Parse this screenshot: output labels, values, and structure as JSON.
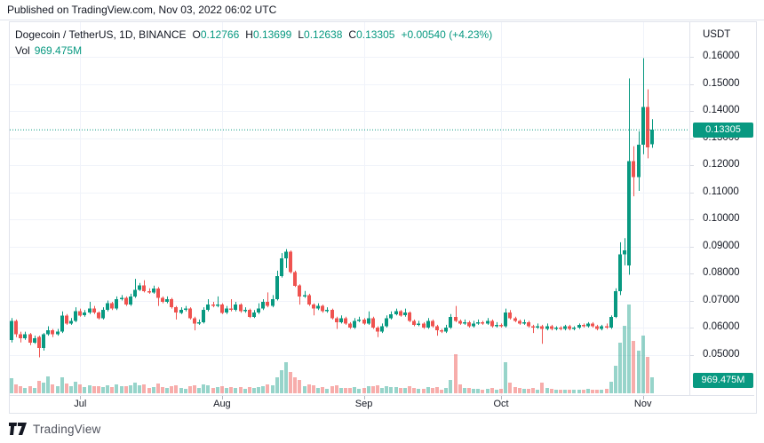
{
  "published_bar": {
    "text": "Published on TradingView.com, Nov 03, 2022 06:02 UTC"
  },
  "legend": {
    "symbol": "Dogecoin / TetherUS, 1D, BINANCE",
    "ohlc": [
      {
        "label": "O",
        "value": "0.12766"
      },
      {
        "label": "H",
        "value": "0.13699"
      },
      {
        "label": "L",
        "value": "0.12638"
      },
      {
        "label": "C",
        "value": "0.13305"
      }
    ],
    "change": "+0.00540 (+4.23%)",
    "vol_label": "Vol",
    "vol_value": "969.475M"
  },
  "price_axis": {
    "currency": "USDT",
    "labels": [
      "0.16000",
      "0.15000",
      "0.14000",
      "0.13000",
      "0.12000",
      "0.11000",
      "0.10000",
      "0.09000",
      "0.08000",
      "0.07000",
      "0.06000",
      "0.05000"
    ],
    "last_price_badge": "0.13305",
    "volume_badge": "969.475M"
  },
  "time_axis": {
    "labels": [
      {
        "text": "Jul",
        "index": 15
      },
      {
        "text": "Aug",
        "index": 46
      },
      {
        "text": "Sep",
        "index": 77
      },
      {
        "text": "Oct",
        "index": 107
      },
      {
        "text": "Nov",
        "index": 138
      }
    ]
  },
  "footer": {
    "brand": "TradingView"
  },
  "colors": {
    "up": "#089981",
    "down": "#ef5350",
    "vol_up": "rgba(8,153,129,0.42)",
    "vol_down": "rgba(239,83,80,0.48)",
    "grid": "#f0f3fa",
    "border": "#e0e3eb",
    "text": "#131722",
    "accent": "#089981",
    "badge_bg": "#089981"
  },
  "chart_data": {
    "type": "candlestick+volume",
    "title": "Dogecoin / TetherUS, 1D, BINANCE",
    "symbol": "DOGE/USDT",
    "exchange": "BINANCE",
    "interval": "1D",
    "quote_currency": "USDT",
    "current_candle": {
      "open": 0.12766,
      "high": 0.13699,
      "low": 0.12638,
      "close": 0.13305,
      "change": 0.0054,
      "change_pct": 4.23
    },
    "current_volume": "969.475M",
    "date_range": "mid-June 2022 to Nov 03 2022, daily candles",
    "ylim": [
      0.05,
      0.16
    ],
    "grid": true,
    "last_price_line": 0.13305,
    "candles": [
      [
        0.0555,
        0.0635,
        0.0545,
        0.0625
      ],
      [
        0.0625,
        0.063,
        0.0565,
        0.0575
      ],
      [
        0.0575,
        0.0585,
        0.0545,
        0.056
      ],
      [
        0.056,
        0.0585,
        0.0555,
        0.0575
      ],
      [
        0.0575,
        0.058,
        0.0535,
        0.0545
      ],
      [
        0.0545,
        0.057,
        0.054,
        0.056
      ],
      [
        0.0565,
        0.057,
        0.049,
        0.0525
      ],
      [
        0.0525,
        0.058,
        0.0515,
        0.0575
      ],
      [
        0.0575,
        0.0605,
        0.057,
        0.059
      ],
      [
        0.059,
        0.0595,
        0.0565,
        0.0575
      ],
      [
        0.0575,
        0.0595,
        0.057,
        0.0585
      ],
      [
        0.0585,
        0.066,
        0.058,
        0.0645
      ],
      [
        0.0645,
        0.065,
        0.061,
        0.0615
      ],
      [
        0.0615,
        0.0635,
        0.061,
        0.0625
      ],
      [
        0.0625,
        0.0675,
        0.062,
        0.066
      ],
      [
        0.066,
        0.067,
        0.064,
        0.0645
      ],
      [
        0.0645,
        0.0665,
        0.064,
        0.0655
      ],
      [
        0.0655,
        0.0695,
        0.065,
        0.067
      ],
      [
        0.067,
        0.068,
        0.065,
        0.0655
      ],
      [
        0.0655,
        0.066,
        0.063,
        0.0635
      ],
      [
        0.0635,
        0.0675,
        0.063,
        0.0665
      ],
      [
        0.0665,
        0.07,
        0.066,
        0.069
      ],
      [
        0.069,
        0.0695,
        0.0665,
        0.067
      ],
      [
        0.067,
        0.0715,
        0.0665,
        0.0705
      ],
      [
        0.0705,
        0.072,
        0.07,
        0.071
      ],
      [
        0.071,
        0.0715,
        0.068,
        0.0685
      ],
      [
        0.0685,
        0.0725,
        0.068,
        0.0715
      ],
      [
        0.0715,
        0.078,
        0.071,
        0.074
      ],
      [
        0.074,
        0.0765,
        0.0735,
        0.0755
      ],
      [
        0.0755,
        0.0775,
        0.073,
        0.0735
      ],
      [
        0.0735,
        0.0745,
        0.0725,
        0.073
      ],
      [
        0.073,
        0.0755,
        0.0725,
        0.0745
      ],
      [
        0.0745,
        0.075,
        0.068,
        0.071
      ],
      [
        0.071,
        0.0715,
        0.069,
        0.0695
      ],
      [
        0.0695,
        0.0715,
        0.069,
        0.0705
      ],
      [
        0.0705,
        0.071,
        0.067,
        0.0675
      ],
      [
        0.0675,
        0.068,
        0.063,
        0.0655
      ],
      [
        0.0655,
        0.0675,
        0.065,
        0.0665
      ],
      [
        0.0665,
        0.068,
        0.066,
        0.067
      ],
      [
        0.067,
        0.0675,
        0.063,
        0.0635
      ],
      [
        0.0635,
        0.064,
        0.059,
        0.0615
      ],
      [
        0.0615,
        0.063,
        0.061,
        0.062
      ],
      [
        0.062,
        0.0675,
        0.0615,
        0.0665
      ],
      [
        0.0665,
        0.0705,
        0.066,
        0.0685
      ],
      [
        0.0685,
        0.0695,
        0.0675,
        0.068
      ],
      [
        0.068,
        0.0715,
        0.0675,
        0.0685
      ],
      [
        0.0685,
        0.069,
        0.065,
        0.0655
      ],
      [
        0.0655,
        0.068,
        0.065,
        0.067
      ],
      [
        0.067,
        0.0705,
        0.066,
        0.0665
      ],
      [
        0.0665,
        0.0695,
        0.066,
        0.0685
      ],
      [
        0.0685,
        0.069,
        0.0655,
        0.066
      ],
      [
        0.066,
        0.0675,
        0.0655,
        0.0665
      ],
      [
        0.0665,
        0.067,
        0.0635,
        0.064
      ],
      [
        0.064,
        0.0665,
        0.0635,
        0.0655
      ],
      [
        0.0655,
        0.069,
        0.065,
        0.067
      ],
      [
        0.067,
        0.0705,
        0.0665,
        0.0695
      ],
      [
        0.0695,
        0.073,
        0.0675,
        0.068
      ],
      [
        0.068,
        0.072,
        0.0675,
        0.0705
      ],
      [
        0.0705,
        0.081,
        0.07,
        0.079
      ],
      [
        0.079,
        0.0875,
        0.0785,
        0.0855
      ],
      [
        0.0855,
        0.089,
        0.082,
        0.088
      ],
      [
        0.088,
        0.0885,
        0.08,
        0.0805
      ],
      [
        0.0805,
        0.081,
        0.075,
        0.0755
      ],
      [
        0.0755,
        0.076,
        0.0685,
        0.0715
      ],
      [
        0.0715,
        0.0735,
        0.071,
        0.072
      ],
      [
        0.072,
        0.0725,
        0.068,
        0.0685
      ],
      [
        0.0685,
        0.069,
        0.0645,
        0.067
      ],
      [
        0.067,
        0.069,
        0.0665,
        0.068
      ],
      [
        0.068,
        0.0685,
        0.0655,
        0.066
      ],
      [
        0.066,
        0.0675,
        0.0655,
        0.0665
      ],
      [
        0.0665,
        0.067,
        0.063,
        0.0635
      ],
      [
        0.0635,
        0.064,
        0.0595,
        0.062
      ],
      [
        0.062,
        0.0645,
        0.0615,
        0.0635
      ],
      [
        0.0635,
        0.064,
        0.061,
        0.0615
      ],
      [
        0.0615,
        0.062,
        0.0595,
        0.06
      ],
      [
        0.06,
        0.0635,
        0.0595,
        0.0625
      ],
      [
        0.0625,
        0.064,
        0.062,
        0.063
      ],
      [
        0.063,
        0.0635,
        0.061,
        0.0615
      ],
      [
        0.0615,
        0.066,
        0.061,
        0.0635
      ],
      [
        0.0635,
        0.064,
        0.0595,
        0.06
      ],
      [
        0.06,
        0.0605,
        0.0565,
        0.0585
      ],
      [
        0.0585,
        0.0615,
        0.058,
        0.0605
      ],
      [
        0.0605,
        0.0645,
        0.06,
        0.0635
      ],
      [
        0.0635,
        0.066,
        0.063,
        0.065
      ],
      [
        0.065,
        0.067,
        0.0645,
        0.066
      ],
      [
        0.066,
        0.0665,
        0.064,
        0.0645
      ],
      [
        0.0645,
        0.067,
        0.064,
        0.0655
      ],
      [
        0.0655,
        0.066,
        0.062,
        0.0625
      ],
      [
        0.0625,
        0.063,
        0.0605,
        0.061
      ],
      [
        0.061,
        0.0625,
        0.0605,
        0.0615
      ],
      [
        0.0615,
        0.062,
        0.0595,
        0.06
      ],
      [
        0.06,
        0.0635,
        0.0595,
        0.0625
      ],
      [
        0.0625,
        0.063,
        0.06,
        0.0605
      ],
      [
        0.0605,
        0.061,
        0.057,
        0.059
      ],
      [
        0.059,
        0.0595,
        0.058,
        0.0585
      ],
      [
        0.0585,
        0.061,
        0.058,
        0.06
      ],
      [
        0.06,
        0.065,
        0.0595,
        0.064
      ],
      [
        0.064,
        0.068,
        0.062,
        0.0625
      ],
      [
        0.0625,
        0.063,
        0.061,
        0.0615
      ],
      [
        0.0615,
        0.063,
        0.061,
        0.062
      ],
      [
        0.062,
        0.0625,
        0.06,
        0.0605
      ],
      [
        0.0605,
        0.0625,
        0.06,
        0.0615
      ],
      [
        0.0615,
        0.063,
        0.061,
        0.062
      ],
      [
        0.062,
        0.0625,
        0.061,
        0.0615
      ],
      [
        0.0615,
        0.0635,
        0.061,
        0.0625
      ],
      [
        0.0625,
        0.063,
        0.06,
        0.0605
      ],
      [
        0.0605,
        0.062,
        0.06,
        0.061
      ],
      [
        0.061,
        0.0615,
        0.06,
        0.0605
      ],
      [
        0.0605,
        0.067,
        0.06,
        0.0655
      ],
      [
        0.0655,
        0.0665,
        0.063,
        0.0635
      ],
      [
        0.0635,
        0.064,
        0.062,
        0.0625
      ],
      [
        0.0625,
        0.063,
        0.061,
        0.0615
      ],
      [
        0.0615,
        0.063,
        0.061,
        0.062
      ],
      [
        0.062,
        0.0625,
        0.06,
        0.0605
      ],
      [
        0.0605,
        0.061,
        0.058,
        0.06
      ],
      [
        0.06,
        0.0615,
        0.0595,
        0.0605
      ],
      [
        0.0605,
        0.061,
        0.054,
        0.0595
      ],
      [
        0.0595,
        0.0615,
        0.059,
        0.0605
      ],
      [
        0.0605,
        0.061,
        0.059,
        0.0595
      ],
      [
        0.0595,
        0.0605,
        0.059,
        0.06
      ],
      [
        0.06,
        0.0605,
        0.059,
        0.0595
      ],
      [
        0.0595,
        0.061,
        0.059,
        0.0605
      ],
      [
        0.0605,
        0.061,
        0.059,
        0.0595
      ],
      [
        0.0595,
        0.0605,
        0.059,
        0.06
      ],
      [
        0.06,
        0.0615,
        0.0595,
        0.061
      ],
      [
        0.061,
        0.0615,
        0.06,
        0.0605
      ],
      [
        0.0605,
        0.062,
        0.06,
        0.0615
      ],
      [
        0.0615,
        0.062,
        0.06,
        0.0605
      ],
      [
        0.0605,
        0.061,
        0.059,
        0.0595
      ],
      [
        0.0595,
        0.061,
        0.059,
        0.0605
      ],
      [
        0.0605,
        0.0615,
        0.0595,
        0.06
      ],
      [
        0.06,
        0.0645,
        0.0595,
        0.064
      ],
      [
        0.064,
        0.0745,
        0.0635,
        0.0735
      ],
      [
        0.0735,
        0.0915,
        0.072,
        0.087
      ],
      [
        0.087,
        0.093,
        0.083,
        0.0885
      ],
      [
        0.083,
        0.152,
        0.0795,
        0.1215
      ],
      [
        0.1215,
        0.127,
        0.1085,
        0.1155
      ],
      [
        0.1155,
        0.1325,
        0.1105,
        0.1275
      ],
      [
        0.1275,
        0.1595,
        0.124,
        0.1415
      ],
      [
        0.1415,
        0.148,
        0.1225,
        0.1265
      ],
      [
        0.12766,
        0.13699,
        0.12638,
        0.13305
      ]
    ],
    "volumes_millions": [
      900,
      520,
      430,
      310,
      450,
      350,
      740,
      670,
      1000,
      520,
      430,
      960,
      600,
      410,
      720,
      530,
      400,
      500,
      410,
      450,
      380,
      480,
      400,
      530,
      410,
      450,
      500,
      650,
      500,
      530,
      340,
      360,
      580,
      400,
      330,
      410,
      480,
      330,
      290,
      450,
      500,
      310,
      530,
      500,
      340,
      400,
      450,
      330,
      400,
      340,
      360,
      280,
      380,
      310,
      400,
      450,
      530,
      500,
      960,
      1400,
      1900,
      1300,
      960,
      820,
      430,
      530,
      500,
      340,
      380,
      290,
      410,
      480,
      330,
      310,
      330,
      360,
      280,
      310,
      430,
      410,
      480,
      340,
      450,
      400,
      360,
      310,
      340,
      450,
      340,
      260,
      290,
      360,
      310,
      400,
      240,
      310,
      820,
      2400,
      520,
      340,
      310,
      280,
      290,
      240,
      280,
      330,
      220,
      260,
      1900,
      650,
      380,
      310,
      260,
      290,
      340,
      240,
      650,
      310,
      260,
      210,
      220,
      240,
      210,
      190,
      240,
      210,
      260,
      220,
      210,
      240,
      280,
      720,
      1700,
      3100,
      4100,
      5400,
      3200,
      2600,
      3500,
      2200,
      969.475
    ]
  }
}
